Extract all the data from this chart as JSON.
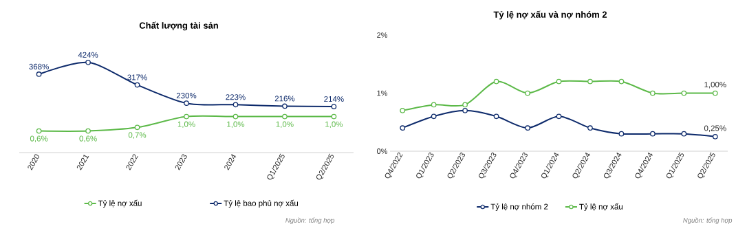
{
  "chart_data": [
    {
      "type": "line",
      "title": "Chất lượng tài sản",
      "categories": [
        null,
        null,
        null,
        null,
        null,
        null,
        null
      ],
      "tick_labels": false,
      "marker": "circle",
      "line_style": "solid",
      "legend": "bottom",
      "series": [
        {
          "name": "Tỷ lệ bao phủ nợ xấu",
          "color": "#0d2a6b",
          "values": [
            368,
            424,
            317,
            230,
            223,
            216,
            214
          ],
          "value_labels": [
            "368%",
            "424%",
            "317%",
            "230%",
            "223%",
            "216%",
            "214%"
          ]
        }
      ]
    },
    {
      "type": "line",
      "categories": [
        "2020",
        "2021",
        "2022",
        "2023",
        "2024",
        "Q1/2025",
        "Q2/2025"
      ],
      "tick_labels": "x",
      "marker": "circle",
      "line_style": "solid",
      "legend": "bottom",
      "series": [
        {
          "name": "Tỷ lệ nợ xấu",
          "color": "#5cb948",
          "values": [
            0.6,
            0.6,
            0.7,
            1.0,
            1.0,
            1.0,
            1.0
          ],
          "value_labels": [
            "0,6%",
            "0,6%",
            "0,7%",
            "1,0%",
            "1,0%",
            "1,0%",
            "1,0%"
          ]
        }
      ],
      "annotations": [
        "Nguồn: tổng hợp"
      ]
    },
    {
      "type": "line",
      "title": "Tỷ lệ nợ xấu và nợ nhóm 2",
      "categories": [
        "Q4/2022",
        "Q1/2023",
        "Q2/2023",
        "Q3/2023",
        "Q4/2023",
        "Q1/2024",
        "Q2/2024",
        "Q3/2024",
        "Q4/2024",
        "Q1/2025",
        "Q2/2025"
      ],
      "ylim": [
        0,
        2
      ],
      "yticks": [
        {
          "value": 0,
          "label": "0%"
        },
        {
          "value": 1,
          "label": "1%"
        },
        {
          "value": 2,
          "label": "2%"
        }
      ],
      "marker": "circle",
      "line_style": "solid",
      "grid": false,
      "legend": "bottom",
      "series": [
        {
          "name": "Tỷ lệ nợ nhóm 2",
          "color": "#0d2a6b",
          "values": [
            0.4,
            0.6,
            0.7,
            0.6,
            0.4,
            0.6,
            0.4,
            0.3,
            0.3,
            0.3,
            0.25
          ],
          "value_labels": [
            null,
            null,
            null,
            null,
            null,
            null,
            null,
            null,
            null,
            null,
            "0,25%"
          ]
        },
        {
          "name": "Tỷ lệ nợ xấu",
          "color": "#5cb948",
          "values": [
            0.7,
            0.8,
            0.8,
            1.2,
            1.0,
            1.2,
            1.2,
            1.2,
            1.0,
            1.0,
            1.0
          ],
          "value_labels": [
            null,
            null,
            null,
            null,
            null,
            null,
            null,
            null,
            null,
            null,
            "1,00%"
          ]
        }
      ],
      "annotations": [
        "Nguồn: tổng hợp"
      ]
    }
  ]
}
